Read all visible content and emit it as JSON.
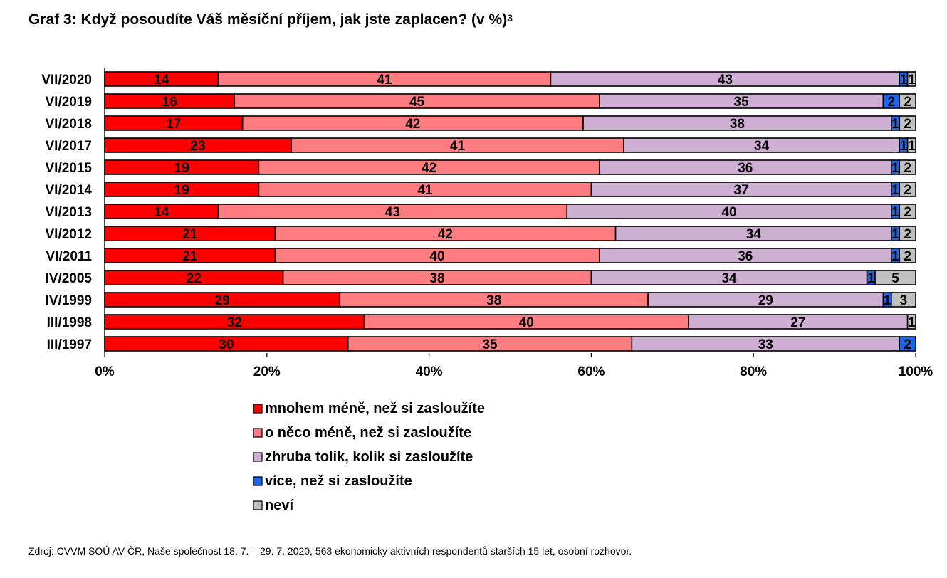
{
  "title": "Graf 3: Když posoudíte Váš měsíční příjem, jak jste zaplacen? (v %)",
  "title_sup": "3",
  "source": "Zdroj: CVVM SOÚ AV ČR, Naše společnost 18. 7. – 29. 7. 2020, 563 ekonomicky aktivních respondentů starších 15 let, osobní rozhovor.",
  "chart_data": {
    "type": "bar",
    "orientation": "horizontal",
    "stacked": true,
    "normalized": true,
    "categories": [
      "VII/2020",
      "VI/2019",
      "VI/2018",
      "VI/2017",
      "VI/2015",
      "VI/2014",
      "VI/2013",
      "VI/2012",
      "VI/2011",
      "IV/2005",
      "IV/1999",
      "III/1998",
      "III/1997"
    ],
    "series": [
      {
        "name": "mnohem méně, než si zasloužíte",
        "color": "#ff0000",
        "values": [
          14,
          16,
          17,
          23,
          19,
          19,
          14,
          21,
          21,
          22,
          29,
          32,
          30
        ]
      },
      {
        "name": "o něco méně, než si zasloužíte",
        "color": "#ff7c80",
        "values": [
          41,
          45,
          42,
          41,
          42,
          41,
          43,
          42,
          40,
          38,
          38,
          40,
          35
        ]
      },
      {
        "name": "zhruba tolik, kolik si zasloužíte",
        "color": "#cfaed3",
        "values": [
          43,
          35,
          38,
          34,
          36,
          37,
          40,
          34,
          36,
          34,
          29,
          27,
          33
        ]
      },
      {
        "name": "více, než si zasloužíte",
        "color": "#1f66e6",
        "values": [
          1,
          2,
          1,
          1,
          1,
          1,
          1,
          1,
          1,
          1,
          1,
          0,
          2
        ]
      },
      {
        "name": "neví",
        "color": "#c0c0c0",
        "values": [
          1,
          2,
          2,
          1,
          2,
          2,
          2,
          2,
          2,
          5,
          3,
          1,
          0
        ]
      }
    ],
    "x_ticks": [
      "0%",
      "20%",
      "40%",
      "60%",
      "80%",
      "100%"
    ],
    "xlim": [
      0,
      100
    ],
    "legend_position": "bottom"
  }
}
